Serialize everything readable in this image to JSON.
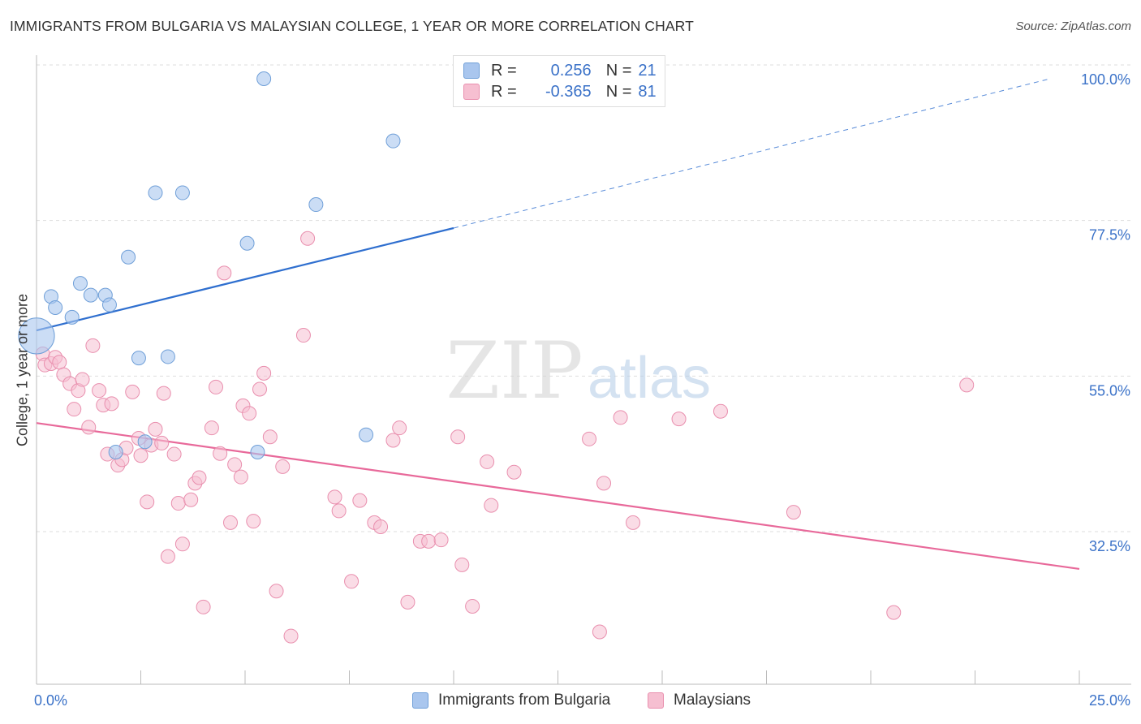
{
  "header": {
    "title": "IMMIGRANTS FROM BULGARIA VS MALAYSIAN COLLEGE, 1 YEAR OR MORE CORRELATION CHART",
    "source": "Source: ZipAtlas.com"
  },
  "watermark": {
    "zip": "ZIP",
    "atlas": "atlas"
  },
  "legend": {
    "rows": [
      {
        "r_label": "R =",
        "r_value": "0.256",
        "n_label": "N =",
        "n_value": "21"
      },
      {
        "r_label": "R =",
        "r_value": "-0.365",
        "n_label": "N =",
        "n_value": "81"
      }
    ]
  },
  "bottom_legend": {
    "series1": "Immigrants from Bulgaria",
    "series2": "Malaysians"
  },
  "colors": {
    "blue_fill": "#a9c6ee",
    "blue_stroke": "#6f9fd8",
    "blue_line": "#2f6fcf",
    "pink_fill": "#f6bfd1",
    "pink_stroke": "#e98fae",
    "pink_line": "#e8699a",
    "axis_label": "#3b72c8",
    "grid": "#dddddd"
  },
  "chart_data": {
    "type": "scatter",
    "title": "IMMIGRANTS FROM BULGARIA VS MALAYSIAN COLLEGE, 1 YEAR OR MORE CORRELATION CHART",
    "xlabel": "",
    "ylabel": "College, 1 year or more",
    "x_tick_labels": [
      "0.0%",
      "25.0%"
    ],
    "y_tick_labels": [
      "100.0%",
      "77.5%",
      "55.0%",
      "32.5%"
    ],
    "xlim": [
      0,
      25
    ],
    "ylim": [
      12,
      102
    ],
    "y_ticks": [
      100,
      77.5,
      55,
      32.5
    ],
    "grid": true,
    "legend_position": "top-center",
    "series": [
      {
        "name": "Immigrants from Bulgaria",
        "color": "#6f9fd8",
        "points": [
          [
            0.0,
            62.8,
            2.6
          ],
          [
            0.35,
            68.5,
            1
          ],
          [
            0.45,
            66.9,
            1
          ],
          [
            0.85,
            65.5,
            1
          ],
          [
            1.05,
            70.4,
            1
          ],
          [
            1.3,
            68.7,
            1
          ],
          [
            1.65,
            68.7,
            1
          ],
          [
            1.75,
            67.3,
            1
          ],
          [
            2.2,
            74.2,
            1
          ],
          [
            2.45,
            59.6,
            1
          ],
          [
            1.9,
            46.0,
            1
          ],
          [
            2.6,
            47.5,
            1
          ],
          [
            2.85,
            83.5,
            1
          ],
          [
            3.5,
            83.5,
            1
          ],
          [
            3.15,
            59.8,
            1
          ],
          [
            5.05,
            76.2,
            1
          ],
          [
            5.3,
            46.0,
            1
          ],
          [
            5.45,
            100.0,
            1
          ],
          [
            6.7,
            81.8,
            1
          ],
          [
            8.55,
            91.0,
            1
          ],
          [
            7.9,
            48.5,
            1
          ]
        ],
        "trend": {
          "x": [
            0,
            10
          ],
          "y": [
            63.6,
            78.4
          ],
          "dashed_extension": {
            "x": [
              10,
              24.3
            ],
            "y": [
              78.4,
              100.0
            ]
          }
        }
      },
      {
        "name": "Malaysians",
        "color": "#e98fae",
        "points": [
          [
            0.15,
            60.2,
            1
          ],
          [
            0.2,
            58.6,
            1
          ],
          [
            0.35,
            58.8,
            1
          ],
          [
            0.45,
            59.7,
            1
          ],
          [
            0.55,
            59.0,
            1
          ],
          [
            0.65,
            57.2,
            1
          ],
          [
            0.8,
            55.9,
            1
          ],
          [
            0.9,
            52.2,
            1
          ],
          [
            1.0,
            54.9,
            1
          ],
          [
            1.1,
            56.5,
            1
          ],
          [
            1.25,
            49.6,
            1
          ],
          [
            1.35,
            61.4,
            1
          ],
          [
            1.5,
            54.9,
            1
          ],
          [
            1.6,
            52.8,
            1
          ],
          [
            1.7,
            45.7,
            1
          ],
          [
            1.8,
            53.0,
            1
          ],
          [
            1.95,
            44.1,
            1
          ],
          [
            2.05,
            44.9,
            1
          ],
          [
            2.15,
            46.6,
            1
          ],
          [
            2.3,
            54.7,
            1
          ],
          [
            2.45,
            48.0,
            1
          ],
          [
            2.5,
            45.5,
            1
          ],
          [
            2.65,
            38.8,
            1
          ],
          [
            2.75,
            47.0,
            1
          ],
          [
            2.85,
            49.3,
            1
          ],
          [
            3.0,
            47.3,
            1
          ],
          [
            3.05,
            54.5,
            1
          ],
          [
            3.15,
            30.9,
            1
          ],
          [
            3.3,
            45.7,
            1
          ],
          [
            3.4,
            38.6,
            1
          ],
          [
            3.5,
            32.7,
            1
          ],
          [
            3.7,
            39.1,
            1
          ],
          [
            3.8,
            41.5,
            1
          ],
          [
            3.9,
            42.3,
            1
          ],
          [
            4.0,
            23.6,
            1
          ],
          [
            4.2,
            49.5,
            1
          ],
          [
            4.3,
            55.4,
            1
          ],
          [
            4.4,
            45.8,
            1
          ],
          [
            4.5,
            71.9,
            1
          ],
          [
            4.65,
            35.8,
            1
          ],
          [
            4.75,
            44.2,
            1
          ],
          [
            4.9,
            42.4,
            1
          ],
          [
            4.95,
            52.7,
            1
          ],
          [
            5.1,
            51.6,
            1
          ],
          [
            5.2,
            36.0,
            1
          ],
          [
            5.35,
            55.1,
            1
          ],
          [
            5.45,
            57.4,
            1
          ],
          [
            5.6,
            48.2,
            1
          ],
          [
            5.75,
            25.9,
            1
          ],
          [
            5.9,
            43.9,
            1
          ],
          [
            6.1,
            19.4,
            1
          ],
          [
            6.4,
            62.9,
            1
          ],
          [
            6.5,
            76.9,
            1
          ],
          [
            7.15,
            39.5,
            1
          ],
          [
            7.25,
            37.5,
            1
          ],
          [
            7.55,
            27.3,
            1
          ],
          [
            7.75,
            39.0,
            1
          ],
          [
            8.1,
            35.8,
            1
          ],
          [
            8.25,
            35.2,
            1
          ],
          [
            8.55,
            47.7,
            1
          ],
          [
            8.7,
            49.5,
            1
          ],
          [
            8.9,
            24.3,
            1
          ],
          [
            9.2,
            33.1,
            1
          ],
          [
            9.4,
            33.1,
            1
          ],
          [
            9.7,
            33.3,
            1
          ],
          [
            10.1,
            48.2,
            1
          ],
          [
            10.2,
            29.7,
            1
          ],
          [
            10.45,
            23.7,
            1
          ],
          [
            10.8,
            44.6,
            1
          ],
          [
            10.9,
            38.3,
            1
          ],
          [
            11.45,
            43.1,
            1
          ],
          [
            13.25,
            47.9,
            1
          ],
          [
            13.5,
            20.0,
            1
          ],
          [
            13.6,
            41.5,
            1
          ],
          [
            14.0,
            51.0,
            1
          ],
          [
            14.3,
            35.8,
            1
          ],
          [
            15.4,
            50.8,
            1
          ],
          [
            16.4,
            51.9,
            1
          ],
          [
            18.15,
            37.3,
            1
          ],
          [
            20.55,
            22.8,
            1
          ],
          [
            22.3,
            55.7,
            1
          ]
        ],
        "trend": {
          "x": [
            0,
            25
          ],
          "y": [
            50.2,
            29.1
          ]
        }
      }
    ]
  }
}
